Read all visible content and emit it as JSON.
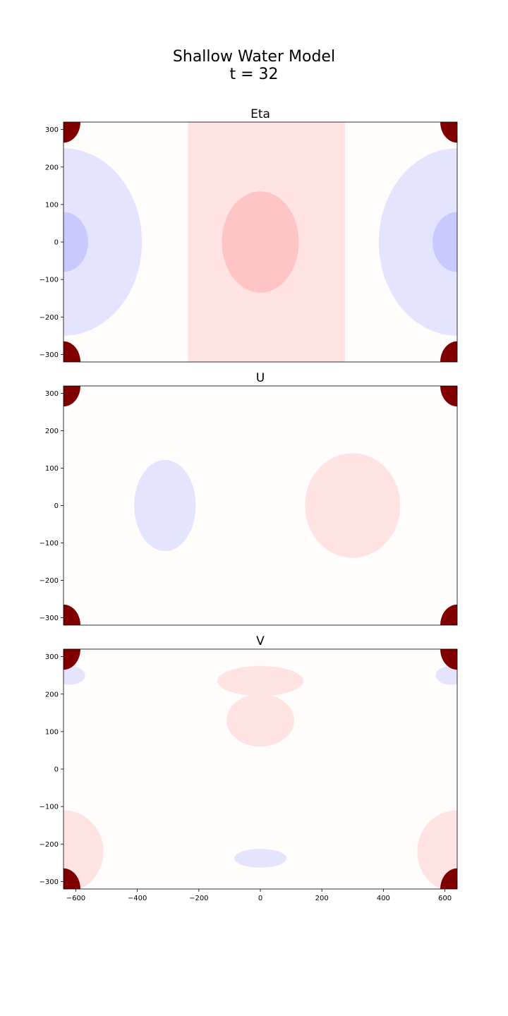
{
  "figure": {
    "title_line1": "Shallow Water Model",
    "title_line2": "t = 32"
  },
  "colors": {
    "background": "#fffcfc",
    "neg_mid": "#e4e4ff",
    "neg_strong": "#c9c9ff",
    "pos_mid": "#ffe2e2",
    "pos_strong": "#ffc4c4",
    "extreme": "#800000"
  },
  "chart_data": [
    {
      "type": "heatmap",
      "title": "Eta",
      "xlabel": "",
      "ylabel": "",
      "xlim": [
        -640,
        640
      ],
      "ylim": [
        -320,
        320
      ],
      "colormap": "seismic",
      "show_xticks": false,
      "yticks": [
        300,
        200,
        100,
        0,
        -100,
        -200,
        -300
      ],
      "regions": [
        {
          "kind": "rect",
          "x": [
            -235,
            275
          ],
          "y": [
            -320,
            320
          ],
          "level": "pos_mid"
        },
        {
          "kind": "ellipse",
          "cx": 0,
          "cy": 0,
          "rx": 125,
          "ry": 135,
          "level": "pos_strong"
        },
        {
          "kind": "ellipse",
          "cx": -640,
          "cy": 0,
          "rx": 255,
          "ry": 250,
          "level": "neg_mid"
        },
        {
          "kind": "ellipse",
          "cx": 640,
          "cy": 0,
          "rx": 255,
          "ry": 250,
          "level": "neg_mid"
        },
        {
          "kind": "ellipse",
          "cx": -640,
          "cy": 0,
          "rx": 80,
          "ry": 80,
          "level": "neg_strong"
        },
        {
          "kind": "ellipse",
          "cx": 640,
          "cy": 0,
          "rx": 80,
          "ry": 80,
          "level": "neg_strong"
        },
        {
          "kind": "corners",
          "r": 55,
          "level": "extreme"
        }
      ]
    },
    {
      "type": "heatmap",
      "title": "U",
      "xlabel": "",
      "ylabel": "",
      "xlim": [
        -640,
        640
      ],
      "ylim": [
        -320,
        320
      ],
      "colormap": "seismic",
      "show_xticks": false,
      "yticks": [
        300,
        200,
        100,
        0,
        -100,
        -200,
        -300
      ],
      "regions": [
        {
          "kind": "ellipse",
          "cx": -310,
          "cy": 0,
          "rx": 100,
          "ry": 122,
          "level": "neg_mid"
        },
        {
          "kind": "ellipse",
          "cx": 300,
          "cy": 0,
          "rx": 155,
          "ry": 140,
          "level": "pos_mid"
        },
        {
          "kind": "corners",
          "r": 55,
          "level": "extreme"
        }
      ]
    },
    {
      "type": "heatmap",
      "title": "V",
      "xlabel": "",
      "ylabel": "",
      "xlim": [
        -640,
        640
      ],
      "ylim": [
        -320,
        320
      ],
      "colormap": "seismic",
      "show_xticks": true,
      "xticks": [
        -600,
        -400,
        -200,
        0,
        200,
        400,
        600
      ],
      "yticks": [
        300,
        200,
        100,
        0,
        -100,
        -200,
        -300
      ],
      "regions": [
        {
          "kind": "ellipse",
          "cx": 0,
          "cy": 235,
          "rx": 140,
          "ry": 40,
          "level": "pos_mid"
        },
        {
          "kind": "ellipse",
          "cx": 0,
          "cy": 130,
          "rx": 110,
          "ry": 70,
          "level": "pos_mid"
        },
        {
          "kind": "ellipse",
          "cx": 0,
          "cy": -238,
          "rx": 85,
          "ry": 25,
          "level": "neg_mid"
        },
        {
          "kind": "ellipse",
          "cx": -640,
          "cy": -220,
          "rx": 130,
          "ry": 110,
          "level": "pos_mid"
        },
        {
          "kind": "ellipse",
          "cx": 640,
          "cy": -220,
          "rx": 130,
          "ry": 110,
          "level": "pos_mid"
        },
        {
          "kind": "ellipse",
          "cx": -620,
          "cy": 250,
          "rx": 50,
          "ry": 25,
          "level": "neg_mid"
        },
        {
          "kind": "ellipse",
          "cx": 620,
          "cy": 250,
          "rx": 50,
          "ry": 25,
          "level": "neg_mid"
        },
        {
          "kind": "corners",
          "r": 55,
          "level": "extreme"
        }
      ]
    }
  ]
}
